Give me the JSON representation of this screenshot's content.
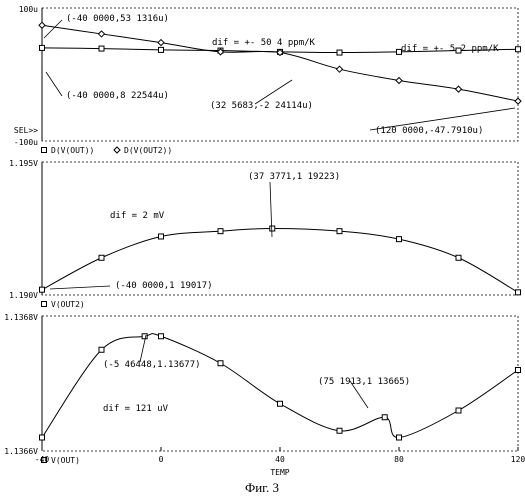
{
  "figure": {
    "caption": "Фиг. 3"
  },
  "chart_data": [
    {
      "type": "line",
      "x_range": [
        -40,
        120
      ],
      "ylim": [
        -100,
        100
      ],
      "ytick_labels": [
        "100u",
        "SEL>>",
        "-100u"
      ],
      "series": [
        {
          "name": "D(V(OUT))",
          "marker": "square",
          "x": [
            -40,
            -20,
            0,
            20,
            40,
            60,
            80,
            100,
            120
          ],
          "y": [
            40,
            39,
            37,
            36,
            34,
            33,
            34,
            36,
            38
          ]
        },
        {
          "name": "D(V(OUT2))",
          "marker": "diamond",
          "x": [
            -40,
            -20,
            0,
            20,
            40,
            60,
            80,
            100,
            120
          ],
          "y": [
            74,
            61,
            48,
            34,
            33,
            8,
            -9,
            -22,
            -40
          ]
        }
      ],
      "annotations": [
        {
          "text": "(-40 0000,53 1316u)",
          "x": -40,
          "y": 53
        },
        {
          "text": "dif = +- 50 4 ppm/K"
        },
        {
          "text": "dif = +- 5 2 ppm/K"
        },
        {
          "text": "(-40 0000,8 22544u)",
          "x": -40,
          "y": 8
        },
        {
          "text": "(32 5683,-2 24114u)",
          "x": 32.6,
          "y": -2
        },
        {
          "text": "(120 0000,-47.7910u)",
          "x": 120,
          "y": -48
        }
      ]
    },
    {
      "type": "line",
      "x_range": [
        -40,
        120
      ],
      "ylim": [
        1.19,
        1.195
      ],
      "ytick_labels": [
        "1.195V",
        "1.190V"
      ],
      "series": [
        {
          "name": "V(OUT2)",
          "marker": "square",
          "x": [
            -40,
            -20,
            0,
            20,
            37.4,
            60,
            80,
            100,
            120
          ],
          "y": [
            1.1902,
            1.1914,
            1.1922,
            1.1924,
            1.1925,
            1.1924,
            1.1921,
            1.1914,
            1.1901
          ]
        }
      ],
      "annotations": [
        {
          "text": "(37 3771,1 19223)",
          "x": 37.4,
          "y": 1.1922
        },
        {
          "text": "dif = 2 mV"
        },
        {
          "text": "(-40 0000,1 19017)",
          "x": -40,
          "y": 1.1902
        }
      ]
    },
    {
      "type": "line",
      "x_range": [
        -40,
        120
      ],
      "ylim": [
        1.1366,
        1.1368
      ],
      "xticks": [
        "-40",
        "0",
        "40",
        "80",
        "120"
      ],
      "ytick_labels": [
        "1.1368V",
        "1.1366V"
      ],
      "xlabel": "TEMP",
      "series": [
        {
          "name": "V(OUT)",
          "marker": "square",
          "x": [
            -40,
            -20,
            -5.5,
            0,
            20,
            40,
            60,
            75.2,
            80,
            100,
            120
          ],
          "y": [
            1.13662,
            1.13675,
            1.13677,
            1.13677,
            1.13673,
            1.13667,
            1.13663,
            1.13665,
            1.13662,
            1.13666,
            1.13672
          ]
        }
      ],
      "annotations": [
        {
          "text": "(-5 46448,1.13677)",
          "x": -5.5,
          "y": 1.13677
        },
        {
          "text": "(75 1913,1 13665)",
          "x": 75.2,
          "y": 1.13665
        },
        {
          "text": "dif = 121 uV"
        }
      ]
    }
  ]
}
